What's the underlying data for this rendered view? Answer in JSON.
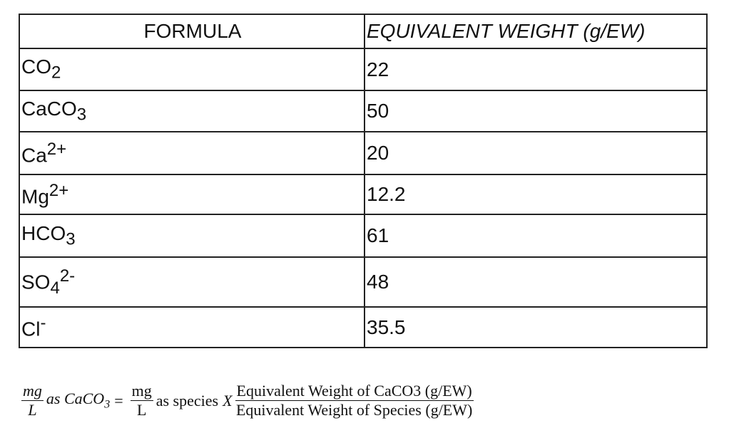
{
  "table": {
    "header": [
      "FORMULA",
      "EQUIVALENT WEIGHT (g/EW)"
    ],
    "rows": [
      {
        "formula": {
          "main": "CO",
          "sub": "2"
        },
        "weight": "22"
      },
      {
        "formula": {
          "main": "CaCO",
          "sub": "3"
        },
        "weight": "50"
      },
      {
        "formula": {
          "main": "Ca",
          "sup": "2+"
        },
        "weight": "20"
      },
      {
        "formula": {
          "main": "Mg",
          "sup": "2+"
        },
        "weight": "12.2"
      },
      {
        "formula": {
          "main": "HCO",
          "sub": "3"
        },
        "weight": "61"
      },
      {
        "formula": {
          "main": "SO",
          "sub": "4",
          "sup": "2-"
        },
        "weight": "48"
      },
      {
        "formula": {
          "main": "Cl",
          "sup": "-"
        },
        "weight": "35.5"
      }
    ]
  },
  "equation": {
    "lhs_num": "mg",
    "lhs_den": "L",
    "lhs_text": "as CaCO",
    "lhs_sub": "3",
    "equals": "=",
    "rhs_num": "mg",
    "rhs_den": "L",
    "rhs_text": "as species",
    "rhs_var": "X",
    "ratio_num": "Equivalent Weight of CaCO3 (g/EW)",
    "ratio_den": "Equivalent Weight of Species (g/EW)"
  }
}
